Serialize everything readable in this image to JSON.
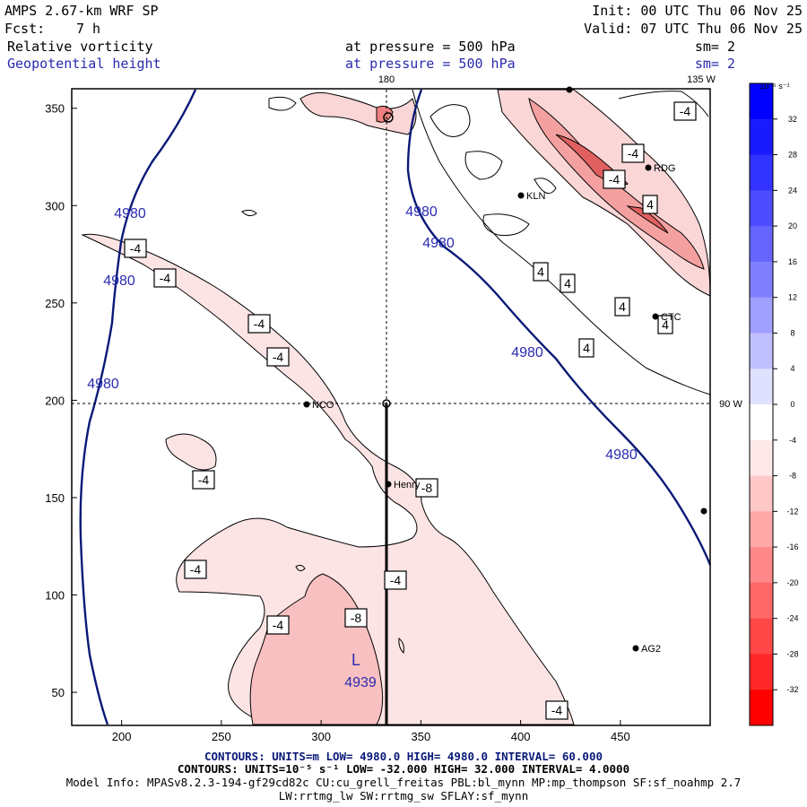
{
  "header": {
    "model": "AMPS 2.67-km WRF SP",
    "fcst_label": "Fcst:",
    "fcst_value": "7 h",
    "init": "Init: 00 UTC Thu 06 Nov 25",
    "valid": "Valid: 07 UTC Thu 06 Nov 25",
    "field1_name": "Relative vorticity",
    "field1_level": "at pressure =  500 hPa",
    "field1_sm": "sm= 2",
    "field2_name": "Geopotential height",
    "field2_level": "at pressure =  500 hPa",
    "field2_sm": "sm= 2"
  },
  "footer": {
    "line1": "CONTOURS:  UNITS=m  LOW=  4980.0          HIGH=  4980.0          INTERVAL=   60.000",
    "line2": "CONTOURS:  UNITS=10⁻⁵ s⁻¹   LOW=  -32.000          HIGH=  32.000          INTERVAL=   4.0000",
    "line3": "Model Info: MPASv8.2.3-194-gf29cd82c CU:cu_grell_freitas PBL:bl_mynn MP:mp_thompson SF:sf_noahmp 2.7",
    "line4": "LW:rrtmg_lw SW:rrtmg_sw SFLAY:sf_mynn"
  },
  "colors": {
    "height_contour": "#0a1a78",
    "vort_contour": "#000000",
    "label_blue": "#3333aa",
    "frame": "#000000"
  },
  "chart_data": {
    "type": "contour",
    "x_ticks": [
      200,
      250,
      300,
      350,
      400,
      450
    ],
    "y_ticks": [
      50,
      100,
      150,
      200,
      250,
      300,
      350
    ],
    "xlim": [
      175,
      495
    ],
    "ylim": [
      33,
      360
    ],
    "grid": false,
    "lines": {
      "lon_180": "180",
      "lon_135w": "135 W",
      "lat_90s": "90 W"
    },
    "height_labels": [
      "4980",
      "4980",
      "4980",
      "4980",
      "4980",
      "4980",
      "4980"
    ],
    "low_center": {
      "symbol": "L",
      "value": "4939"
    },
    "vort_labels": [
      "-4",
      "-4",
      "-4",
      "-4",
      "-4",
      "-4",
      "-4",
      "-4",
      "-8",
      "-8",
      "-4",
      "-4",
      "-4",
      "4",
      "4",
      "4",
      "4",
      "4",
      "4",
      "-4"
    ],
    "stations": [
      "NCO",
      "Henry",
      "KLN",
      "RDG",
      "CTC",
      "AG2"
    ],
    "colorbar": {
      "title": "10⁻⁵ s⁻¹",
      "ticks": [
        "32",
        "28",
        "24",
        "20",
        "16",
        "12",
        "8",
        "4",
        "0",
        "-4",
        "-8",
        "-12",
        "-16",
        "-20",
        "-24",
        "-28",
        "-32"
      ],
      "colors": [
        "#0000ff",
        "#1a1aff",
        "#3333ff",
        "#4d4dff",
        "#6666ff",
        "#8080ff",
        "#a0a0ff",
        "#c0c0ff",
        "#e0e0ff",
        "#ffffff",
        "#ffe8e8",
        "#ffc8c8",
        "#ffa8a8",
        "#ff8888",
        "#ff6868",
        "#ff4848",
        "#ff2828",
        "#ff0000"
      ]
    }
  }
}
